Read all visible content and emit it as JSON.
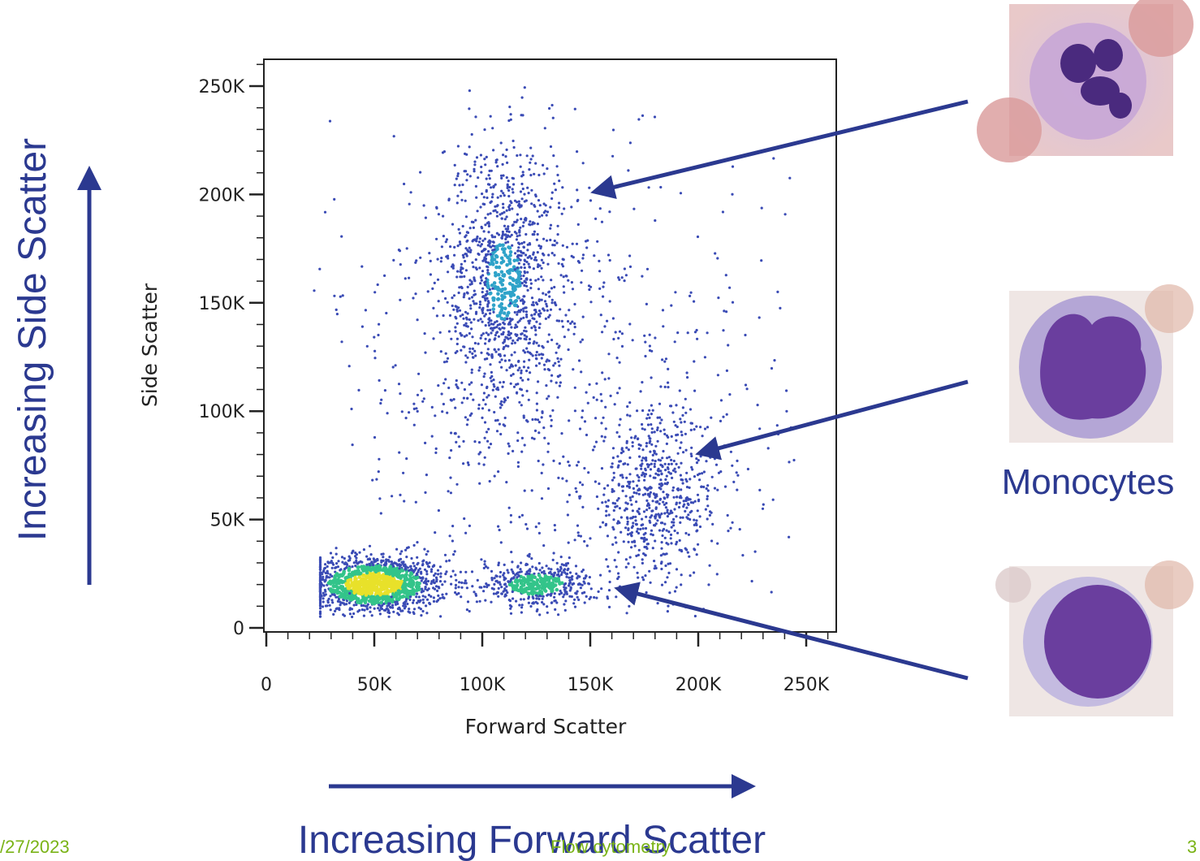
{
  "slide": {
    "left_title": "Increasing Side Scatter",
    "bottom_title": "Increasing Forward Scatter",
    "cell_label": "Monocytes",
    "footer": {
      "date": "/27/2023",
      "title": "Flow cytometry",
      "page": "3"
    }
  },
  "colors": {
    "accent": "#2b3990",
    "footer": "#7ab317",
    "density_low": "#3a4bb5",
    "density_mid": "#33c48a",
    "density_high": "#e8e12a",
    "density_peak": "#e8241c"
  },
  "images": [
    {
      "name": "neutrophil-image",
      "description_icon": "cell-micrograph-icon"
    },
    {
      "name": "monocyte-image",
      "description_icon": "cell-micrograph-icon"
    },
    {
      "name": "lymphocyte-image",
      "description_icon": "cell-micrograph-icon"
    }
  ],
  "chart_data": {
    "type": "scatter",
    "title": "",
    "xlabel": "Forward Scatter",
    "ylabel": "Side Scatter",
    "xlim": [
      0,
      260000
    ],
    "ylim": [
      0,
      260000
    ],
    "xticks": [
      0,
      50000,
      100000,
      150000,
      200000,
      250000
    ],
    "xtick_labels": [
      "0",
      "50K",
      "100K",
      "150K",
      "200K",
      "250K"
    ],
    "yticks": [
      0,
      50000,
      100000,
      150000,
      200000,
      250000
    ],
    "ytick_labels": [
      "0",
      "50K",
      "100K",
      "150K",
      "200K",
      "250K"
    ],
    "grid": false,
    "series": [
      {
        "center": [
          50000,
          20000
        ],
        "spread": [
          17000,
          7000
        ],
        "count": 1300
      },
      {
        "center": [
          110000,
          160000
        ],
        "spread": [
          14000,
          32000
        ],
        "count": 1100
      },
      {
        "center": [
          180000,
          60000
        ],
        "spread": [
          16000,
          20000
        ],
        "count": 650
      },
      {
        "center": [
          125000,
          20000
        ],
        "spread": [
          13000,
          5000
        ],
        "count": 450
      },
      {
        "center": [
          130000,
          110000
        ],
        "spread": [
          55000,
          60000
        ],
        "count": 700
      }
    ],
    "annotations": [
      {
        "label": "",
        "points_to": [
          152000,
          205000
        ]
      },
      {
        "label": "Monocytes",
        "points_to": [
          200000,
          80000
        ]
      },
      {
        "label": "",
        "points_to": [
          162000,
          20000
        ]
      }
    ]
  }
}
